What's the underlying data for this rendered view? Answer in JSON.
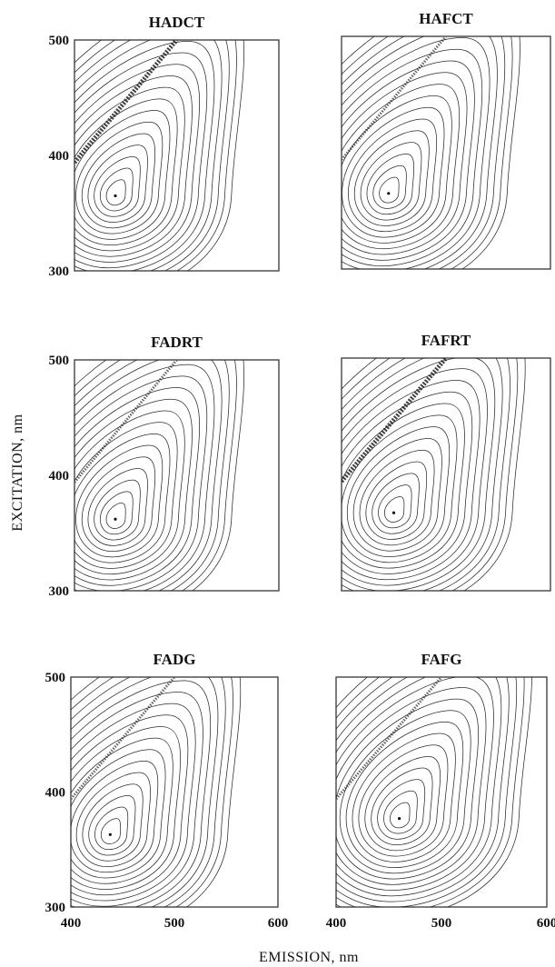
{
  "chart_data": {
    "type": "contour",
    "xlabel": "EMISSION, nm",
    "ylabel": "EXCITATION, nm",
    "xlim": [
      400,
      600
    ],
    "ylim": [
      300,
      500
    ],
    "x_ticks": [
      "400",
      "500",
      "600"
    ],
    "y_ticks": [
      "300",
      "400",
      "500"
    ],
    "panels": [
      {
        "title": "HADCT",
        "peak": {
          "emission": 440,
          "excitation": 365
        }
      },
      {
        "title": "HAFCT",
        "peak": {
          "emission": 445,
          "excitation": 365
        }
      },
      {
        "title": "FADRT",
        "peak": {
          "emission": 440,
          "excitation": 362
        }
      },
      {
        "title": "FAFRT",
        "peak": {
          "emission": 450,
          "excitation": 367
        }
      },
      {
        "title": "FADG",
        "peak": {
          "emission": 438,
          "excitation": 363
        }
      },
      {
        "title": "FAFG",
        "peak": {
          "emission": 460,
          "excitation": 377
        }
      }
    ]
  }
}
